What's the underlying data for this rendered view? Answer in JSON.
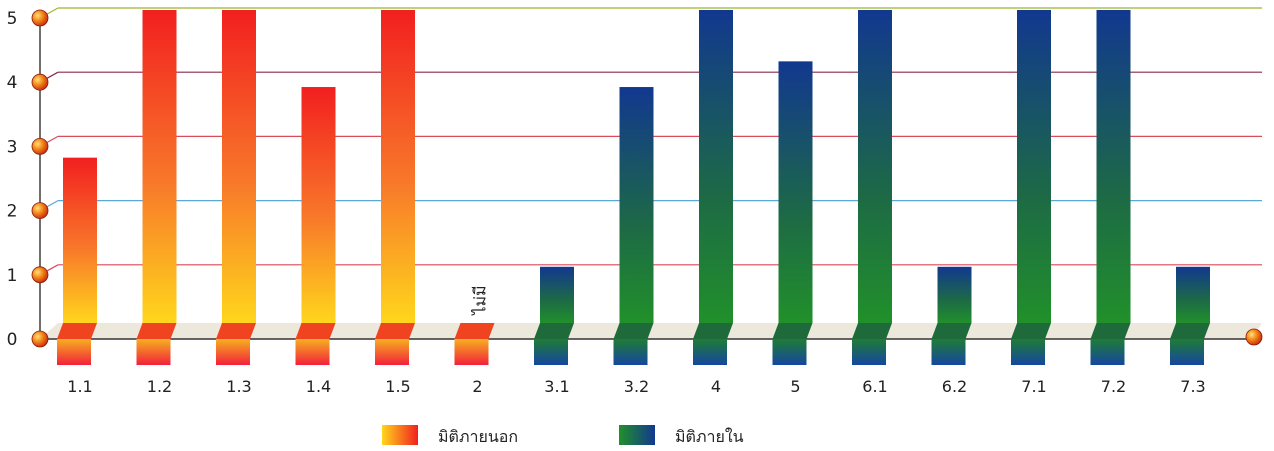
{
  "chart_data": {
    "type": "bar",
    "categories": [
      "1.1",
      "1.2",
      "1.3",
      "1.4",
      "1.5",
      "2",
      "3.1",
      "3.2",
      "4",
      "5",
      "6.1",
      "6.2",
      "7.1",
      "7.2",
      "7.3"
    ],
    "values": [
      2.7,
      5,
      5,
      3.8,
      5,
      0,
      1,
      3.8,
      5,
      4.2,
      5,
      1,
      5,
      5,
      1
    ],
    "groups": [
      "external",
      "external",
      "external",
      "external",
      "external",
      "external",
      "internal",
      "internal",
      "internal",
      "internal",
      "internal",
      "internal",
      "internal",
      "internal",
      "internal"
    ],
    "ylim": [
      0,
      5
    ],
    "yticks": [
      "0",
      "1",
      "2",
      "3",
      "4",
      "5"
    ],
    "gridline_colors": [
      "#d94a5a",
      "#5aa8d8",
      "#d94a5a",
      "#8a2a4a",
      "#9ab82a"
    ],
    "annotations": [
      {
        "category": "2",
        "text": "ไม่มี"
      }
    ],
    "legend": [
      {
        "key": "external",
        "label": "มิติภายนอก",
        "top": "#f02020",
        "bottom": "#ffd21a"
      },
      {
        "key": "internal",
        "label": "มิติภายใน",
        "top": "#123a8e",
        "bottom": "#1f8a2a"
      }
    ],
    "legend_position": "bottom-center"
  }
}
